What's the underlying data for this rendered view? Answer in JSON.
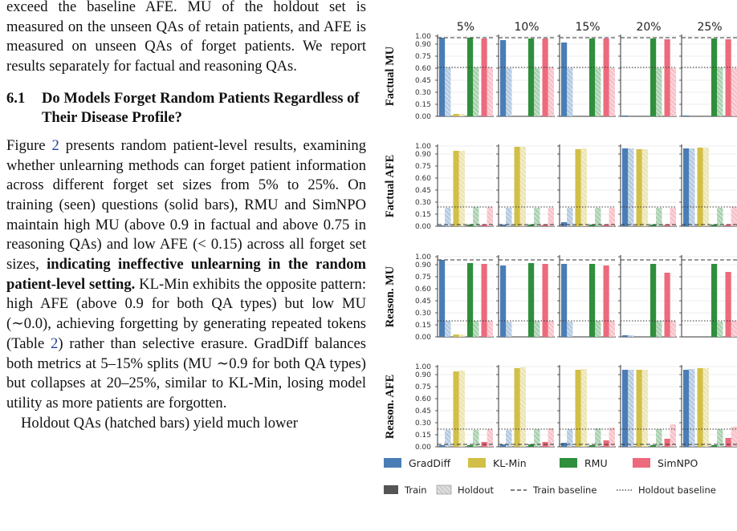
{
  "text": {
    "p1": "exceed the baseline AFE. MU of the holdout set is measured on the unseen QAs of retain patients, and AFE is measured on unseen QAs of forget patients. We report results separately for factual and reasoning QAs.",
    "section_number": "6.1",
    "section_title": "Do Models Forget Random Patients Regardless of Their Disease Profile?",
    "p2_lead": "Figure ",
    "p2_fig_ref": "2",
    "p2_mid": " presents random patient-level results, examining whether unlearning methods can forget patient information across different forget set sizes from 5% to 25%. On training (seen) questions (solid bars), RMU and SimNPO maintain high MU (above 0.9 in factual and above 0.75 in reasoning QAs) and low AFE (< 0.15) across all forget set sizes, ",
    "p2_bold": "indicating ineffective unlearning in the random patient-level setting.",
    "p2_tail_a": " KL-Min exhibits the opposite pattern: high AFE (above 0.9 for both QA types) but low MU (∼0.0), achieving forgetting by generating repeated tokens (Table ",
    "p2_table_ref": "2",
    "p2_tail_b": ") rather than selective erasure. GradDiff balances both metrics at 5–15% splits (MU ∼0.9 for both QA types) but collapses at 20–25%, similar to KL-Min, losing model utility as more patients are forgotten.",
    "p3": "Holdout QAs (hatched bars) yield much lower"
  },
  "chart_data": {
    "type": "bar",
    "columns": [
      "5%",
      "10%",
      "15%",
      "20%",
      "25%"
    ],
    "rows": [
      "Factual MU",
      "Factual AFE",
      "Reason. MU",
      "Reason. AFE"
    ],
    "methods": [
      "GradDiff",
      "KL-Min",
      "RMU",
      "SimNPO"
    ],
    "colors": {
      "GradDiff": "#4a7db5",
      "KL-Min": "#d2bf47",
      "RMU": "#2f8f3c",
      "SimNPO": "#ec6a7c"
    },
    "yticks": [
      "0.00",
      "0.15",
      "0.30",
      "0.45",
      "0.60",
      "0.75",
      "0.90",
      "1.00"
    ],
    "ylim": [
      0,
      1.0
    ],
    "baselines": {
      "Factual MU": {
        "train": 0.98,
        "holdout": 0.61
      },
      "Factual AFE": {
        "train": 0.02,
        "holdout": 0.24
      },
      "Reason. MU": {
        "train": 0.96,
        "holdout": 0.2
      },
      "Reason. AFE": {
        "train": 0.03,
        "holdout": 0.22
      }
    },
    "values": {
      "Factual MU": {
        "GradDiff": {
          "train": [
            0.98,
            0.95,
            0.92,
            0.01,
            0.01
          ],
          "holdout": [
            0.61,
            0.6,
            0.6,
            0.0,
            0.0
          ]
        },
        "KL-Min": {
          "train": [
            0.03,
            0.0,
            0.0,
            0.0,
            0.0
          ],
          "holdout": [
            0.03,
            0.0,
            0.0,
            0.0,
            0.0
          ]
        },
        "RMU": {
          "train": [
            0.98,
            0.97,
            0.97,
            0.97,
            0.97
          ],
          "holdout": [
            0.61,
            0.6,
            0.6,
            0.6,
            0.61
          ]
        },
        "SimNPO": {
          "train": [
            0.97,
            0.97,
            0.97,
            0.96,
            0.96
          ],
          "holdout": [
            0.61,
            0.61,
            0.6,
            0.6,
            0.6
          ]
        }
      },
      "Factual AFE": {
        "GradDiff": {
          "train": [
            0.01,
            0.02,
            0.05,
            0.97,
            0.97
          ],
          "holdout": [
            0.23,
            0.23,
            0.23,
            0.97,
            0.97
          ]
        },
        "KL-Min": {
          "train": [
            0.94,
            0.99,
            0.96,
            0.96,
            0.98
          ],
          "holdout": [
            0.94,
            0.99,
            0.97,
            0.96,
            0.98
          ]
        },
        "RMU": {
          "train": [
            0.02,
            0.02,
            0.02,
            0.02,
            0.02
          ],
          "holdout": [
            0.24,
            0.23,
            0.23,
            0.23,
            0.23
          ]
        },
        "SimNPO": {
          "train": [
            0.02,
            0.02,
            0.02,
            0.02,
            0.02
          ],
          "holdout": [
            0.24,
            0.23,
            0.23,
            0.23,
            0.24
          ]
        }
      },
      "Reason. MU": {
        "GradDiff": {
          "train": [
            0.96,
            0.89,
            0.91,
            0.02,
            0.0
          ],
          "holdout": [
            0.2,
            0.19,
            0.19,
            0.02,
            0.0
          ]
        },
        "KL-Min": {
          "train": [
            0.03,
            0.0,
            0.0,
            0.0,
            0.0
          ],
          "holdout": [
            0.03,
            0.0,
            0.0,
            0.0,
            0.0
          ]
        },
        "RMU": {
          "train": [
            0.92,
            0.92,
            0.91,
            0.91,
            0.91
          ],
          "holdout": [
            0.2,
            0.2,
            0.2,
            0.2,
            0.19
          ]
        },
        "SimNPO": {
          "train": [
            0.91,
            0.91,
            0.89,
            0.8,
            0.81
          ],
          "holdout": [
            0.2,
            0.2,
            0.2,
            0.2,
            0.2
          ]
        }
      },
      "Reason. AFE": {
        "GradDiff": {
          "train": [
            0.02,
            0.03,
            0.05,
            0.96,
            0.96
          ],
          "holdout": [
            0.21,
            0.21,
            0.22,
            0.96,
            0.97
          ]
        },
        "KL-Min": {
          "train": [
            0.94,
            0.98,
            0.96,
            0.96,
            0.98
          ],
          "holdout": [
            0.95,
            0.99,
            0.97,
            0.96,
            0.98
          ]
        },
        "RMU": {
          "train": [
            0.02,
            0.03,
            0.02,
            0.02,
            0.02
          ],
          "holdout": [
            0.21,
            0.22,
            0.23,
            0.22,
            0.22
          ]
        },
        "SimNPO": {
          "train": [
            0.06,
            0.06,
            0.08,
            0.1,
            0.11
          ],
          "holdout": [
            0.22,
            0.23,
            0.24,
            0.28,
            0.25
          ]
        }
      }
    },
    "legend": {
      "methods": [
        "GradDiff",
        "KL-Min",
        "RMU",
        "SimNPO"
      ],
      "styles": [
        "Train",
        "Holdout",
        "Train baseline",
        "Holdout baseline"
      ]
    }
  }
}
